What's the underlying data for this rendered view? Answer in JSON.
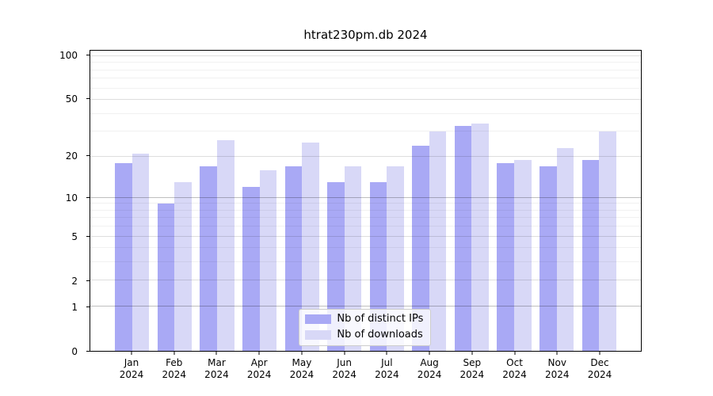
{
  "chart_data": {
    "type": "bar",
    "title": "htrat230pm.db 2024",
    "categories": [
      "Jan",
      "Feb",
      "Mar",
      "Apr",
      "May",
      "Jun",
      "Jul",
      "Aug",
      "Sep",
      "Oct",
      "Nov",
      "Dec"
    ],
    "category_year": "2024",
    "series": [
      {
        "name": "Nb of distinct IPs",
        "color": "#a9a9f5",
        "values": [
          18,
          9,
          17,
          12,
          17,
          13,
          13,
          24,
          33,
          18,
          17,
          19
        ]
      },
      {
        "name": "Nb of downloads",
        "color": "#d8d8f7",
        "values": [
          21,
          13,
          26,
          16,
          25,
          17,
          17,
          30,
          34,
          19,
          23,
          30
        ]
      }
    ],
    "yscale": "log10(value+1)",
    "yticks": [
      0,
      1,
      2,
      5,
      10,
      20,
      50,
      100
    ],
    "ytick_emphasis": [
      1,
      10
    ],
    "minor_gridlines": [
      3,
      4,
      6,
      7,
      8,
      9,
      30,
      40,
      60,
      70,
      80,
      90
    ],
    "ylim": [
      0,
      104
    ],
    "grid": true,
    "legend_position": "lower center",
    "axis_color": "#000000",
    "grid_major_color": "#cfcfcf",
    "grid_minor_color": "#ebebeb"
  }
}
